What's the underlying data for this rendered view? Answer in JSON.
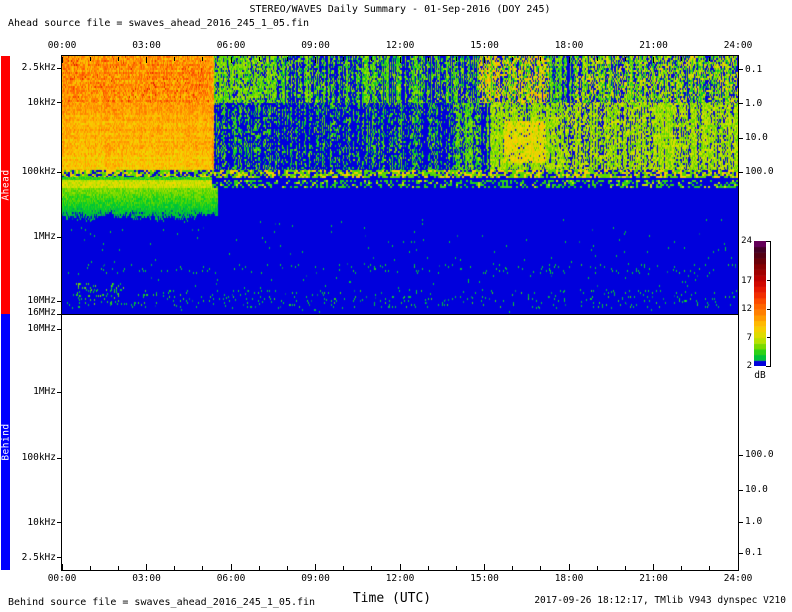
{
  "title": "STEREO/WAVES Daily Summary - 01-Sep-2016 (DOY 245)",
  "header": {
    "ahead_source": "Ahead source file = swaves_ahead_2016_245_1_05.fin"
  },
  "footer": {
    "behind_source": "Behind source file = swaves_ahead_2016_245_1_05.fin",
    "xaxis_title": "Time (UTC)",
    "credit": "2017-09-26 18:12:17, TMlib V943 dynspec V210"
  },
  "xaxis": {
    "range_hours": [
      0,
      24
    ],
    "minor_every_hours": 1,
    "major_ticks": [
      {
        "hour": 0,
        "label": "00:00"
      },
      {
        "hour": 3,
        "label": "03:00"
      },
      {
        "hour": 6,
        "label": "06:00"
      },
      {
        "hour": 9,
        "label": "09:00"
      },
      {
        "hour": 12,
        "label": "12:00"
      },
      {
        "hour": 15,
        "label": "15:00"
      },
      {
        "hour": 18,
        "label": "18:00"
      },
      {
        "hour": 21,
        "label": "21:00"
      },
      {
        "hour": 24,
        "label": "24:00"
      }
    ]
  },
  "panels": {
    "boundary_label": "16MHz",
    "ahead": {
      "label": "Ahead",
      "bar_color": "#ff0000",
      "freq_ticks": [
        {
          "label": "2.5kHz",
          "pos": 0.047
        },
        {
          "label": "10kHz",
          "pos": 0.182
        },
        {
          "label": "100kHz",
          "pos": 0.45
        },
        {
          "label": "1MHz",
          "pos": 0.702
        },
        {
          "label": "10MHz",
          "pos": 0.95
        }
      ],
      "dist_ticks": [
        {
          "label": "0.1",
          "pos": 0.054
        },
        {
          "label": "1.0",
          "pos": 0.186
        },
        {
          "label": "10.0",
          "pos": 0.318
        },
        {
          "label": "100.0",
          "pos": 0.45
        }
      ]
    },
    "behind": {
      "label": "Behind",
      "bar_color": "#0000ff",
      "freq_ticks": [
        {
          "label": "10MHz",
          "pos": 0.059
        },
        {
          "label": "1MHz",
          "pos": 0.305
        },
        {
          "label": "100kHz",
          "pos": 0.563
        },
        {
          "label": "10kHz",
          "pos": 0.816
        },
        {
          "label": "2.5kHz",
          "pos": 0.953
        }
      ],
      "dist_ticks": [
        {
          "label": "100.0",
          "pos": 0.551
        },
        {
          "label": "10.0",
          "pos": 0.688
        },
        {
          "label": "1.0",
          "pos": 0.813
        },
        {
          "label": "0.1",
          "pos": 0.934
        }
      ]
    }
  },
  "colorbar": {
    "label": "dB",
    "min": 2,
    "max": 24,
    "segments": 22,
    "ticks": [
      24,
      17,
      12,
      7,
      2
    ]
  },
  "palette_stops": [
    [
      2,
      0,
      0,
      220
    ],
    [
      2.6,
      0,
      0,
      220
    ],
    [
      3,
      0,
      185,
      70
    ],
    [
      4,
      0,
      205,
      45
    ],
    [
      5,
      90,
      215,
      0
    ],
    [
      6.5,
      185,
      225,
      0
    ],
    [
      8,
      240,
      218,
      0
    ],
    [
      9.5,
      255,
      185,
      0
    ],
    [
      11,
      255,
      140,
      0
    ],
    [
      13,
      255,
      88,
      0
    ],
    [
      15,
      238,
      30,
      0
    ],
    [
      17,
      198,
      0,
      0
    ],
    [
      19,
      148,
      0,
      0
    ],
    [
      21,
      92,
      0,
      12
    ],
    [
      23,
      58,
      0,
      45
    ],
    [
      24,
      142,
      0,
      132
    ]
  ],
  "render_seed": 20160901,
  "chart_data": {
    "type": "heatmap",
    "title": "STEREO/WAVES Daily Summary - 01-Sep-2016 (DOY 245)",
    "xlabel": "Time (UTC)",
    "x_range_hours": [
      0,
      24
    ],
    "y_axis": {
      "type": "log frequency",
      "top_panel": "2.5 kHz (top) to 16 MHz (bottom)",
      "bottom_panel": "16 MHz (top) to 2.5 kHz (bottom)",
      "right_axis_ticks": [
        0.1,
        1.0,
        10.0,
        100.0
      ]
    },
    "colorbar": {
      "units": "dB",
      "range": [
        2,
        24
      ]
    },
    "panels": [
      {
        "name": "Ahead",
        "status": "data present",
        "regions": [
          {
            "name": "background",
            "t0": 0,
            "t1": 24,
            "f0": 0,
            "f1": 1,
            "mode": "solid",
            "base": 2.05,
            "noise": 0.15
          },
          {
            "name": "lfr-morning-block",
            "t0": 0,
            "t1": 5.33,
            "f0": 0,
            "f1": 0.182,
            "mode": "solid",
            "base": 11,
            "noise": 2.2,
            "rowmod": 0.7,
            "colvar": 0.8
          },
          {
            "name": "lfr-morning-hotspots",
            "t0": 0,
            "t1": 5.33,
            "f0": 0,
            "f1": 0.182,
            "mode": "speckle",
            "p": 0.05,
            "sval": 14,
            "svar": 2,
            "overlay": true
          },
          {
            "name": "hfr-morning-block",
            "t0": 0,
            "t1": 5.33,
            "f0": 0.182,
            "f1": 0.442,
            "mode": "grad",
            "top": 10.3,
            "bot": 8.8,
            "noise": 1.5,
            "rowmod": 0.6,
            "colvar": 0.8
          },
          {
            "name": "transition-line",
            "t0": 5.33,
            "t1": 5.4,
            "f0": 0,
            "f1": 0.442,
            "mode": "solid",
            "base": 10.5,
            "noise": 1.8
          },
          {
            "name": "lfr-day-speckle",
            "t0": 5.4,
            "t1": 24,
            "f0": 0,
            "f1": 0.182,
            "mode": "speckle",
            "p": 0.62,
            "sval": 5,
            "svar": 1.6,
            "colvar": 0.75
          },
          {
            "name": "lfr-day-dense-start",
            "t0": 5.4,
            "t1": 7.6,
            "f0": 0,
            "f1": 0.182,
            "mode": "speckle",
            "p": 0.5,
            "sval": 5.5,
            "svar": 1.2,
            "colvar": 0.3,
            "overlay": true
          },
          {
            "name": "lfr-afternoon-orange",
            "t0": 14.8,
            "t1": 17.3,
            "f0": 0,
            "f1": 0.182,
            "mode": "speckle",
            "p": 0.45,
            "sval": 8.5,
            "svar": 2,
            "colvar": 0.5,
            "overlay": true
          },
          {
            "name": "lfr-evening-yellow",
            "t0": 18.2,
            "t1": 24,
            "f0": 0,
            "f1": 0.182,
            "mode": "speckle",
            "p": 0.3,
            "sval": 7.5,
            "svar": 1.5,
            "colvar": 0.5,
            "overlay": true
          },
          {
            "name": "hfr-midday-streaks",
            "t0": 5.4,
            "t1": 13.9,
            "f0": 0.182,
            "f1": 0.442,
            "mode": "speckle",
            "p": 0.34,
            "sval": 4.6,
            "svar": 1.2,
            "colvar": 1.05
          },
          {
            "name": "hfr-streaks-dense",
            "t0": 13.9,
            "t1": 15.2,
            "f0": 0.182,
            "f1": 0.442,
            "mode": "speckle",
            "p": 0.55,
            "sval": 5,
            "svar": 1.2,
            "colvar": 0.8
          },
          {
            "name": "hfr-afternoon-blob",
            "t0": 15.2,
            "t1": 17.6,
            "f0": 0.182,
            "f1": 0.442,
            "mode": "speckle",
            "p": 0.88,
            "sval": 6,
            "svar": 1.3,
            "colvar": 0.35
          },
          {
            "name": "hfr-blob-core",
            "t0": 15.7,
            "t1": 17.2,
            "f0": 0.25,
            "f1": 0.41,
            "mode": "speckle",
            "p": 0.8,
            "sval": 8,
            "svar": 1.4,
            "overlay": true
          },
          {
            "name": "hfr-evening",
            "t0": 17.6,
            "t1": 24,
            "f0": 0.182,
            "f1": 0.442,
            "mode": "speckle",
            "p": 0.85,
            "sval": 6.2,
            "svar": 1.6,
            "colvar": 0.5
          },
          {
            "name": "receiver-band-dots",
            "t0": 0,
            "t1": 24,
            "f0": 0.442,
            "f1": 0.469,
            "mode": "dots",
            "vals": [
              2,
              5,
              8.5
            ],
            "probs": [
              0.3,
              0.4,
              0.3
            ]
          },
          {
            "name": "gap-row-morning",
            "t0": 0,
            "t1": 5.33,
            "f0": 0.469,
            "f1": 0.481,
            "mode": "solid",
            "base": 4.5,
            "noise": 0.8
          },
          {
            "name": "second-line-morning",
            "t0": 0,
            "t1": 5.33,
            "f0": 0.481,
            "f1": 0.508,
            "mode": "solid",
            "base": 7,
            "noise": 1.2
          },
          {
            "name": "second-line-day",
            "t0": 5.33,
            "t1": 24,
            "f0": 0.481,
            "f1": 0.508,
            "mode": "dots",
            "vals": [
              2,
              4.5,
              7
            ],
            "probs": [
              0.6,
              0.3,
              0.1
            ]
          },
          {
            "name": "lf-fuzz-morning",
            "t0": 0,
            "t1": 5.55,
            "f0": 0.512,
            "f1": 0.655,
            "mode": "grad",
            "top": 5.6,
            "bot": 2.3,
            "noise": 0.9,
            "ragged": 0.45
          },
          {
            "name": "deep-sparse-speckle",
            "t0": 0,
            "t1": 24,
            "f0": 0.63,
            "f1": 1,
            "mode": "speckle",
            "p": 0.007,
            "sval": 3.4,
            "svar": 0.7,
            "overlay": true
          },
          {
            "name": "deep-speckle-strip1",
            "t0": 0,
            "t1": 24,
            "f0": 0.806,
            "f1": 0.84,
            "mode": "speckle",
            "p": 0.04,
            "sval": 3.6,
            "svar": 0.8,
            "overlay": true
          },
          {
            "name": "deep-speckle-strip2",
            "t0": 0,
            "t1": 24,
            "f0": 0.907,
            "f1": 0.977,
            "mode": "speckle",
            "p": 0.05,
            "sval": 3.8,
            "svar": 1,
            "overlay": true
          },
          {
            "name": "deep-cluster-early",
            "t0": 0.5,
            "t1": 2.3,
            "f0": 0.88,
            "f1": 0.965,
            "mode": "speckle",
            "p": 0.13,
            "sval": 4.5,
            "svar": 1.2,
            "overlay": true
          }
        ]
      },
      {
        "name": "Behind",
        "status": "no data (blank panel)",
        "regions": []
      }
    ]
  }
}
